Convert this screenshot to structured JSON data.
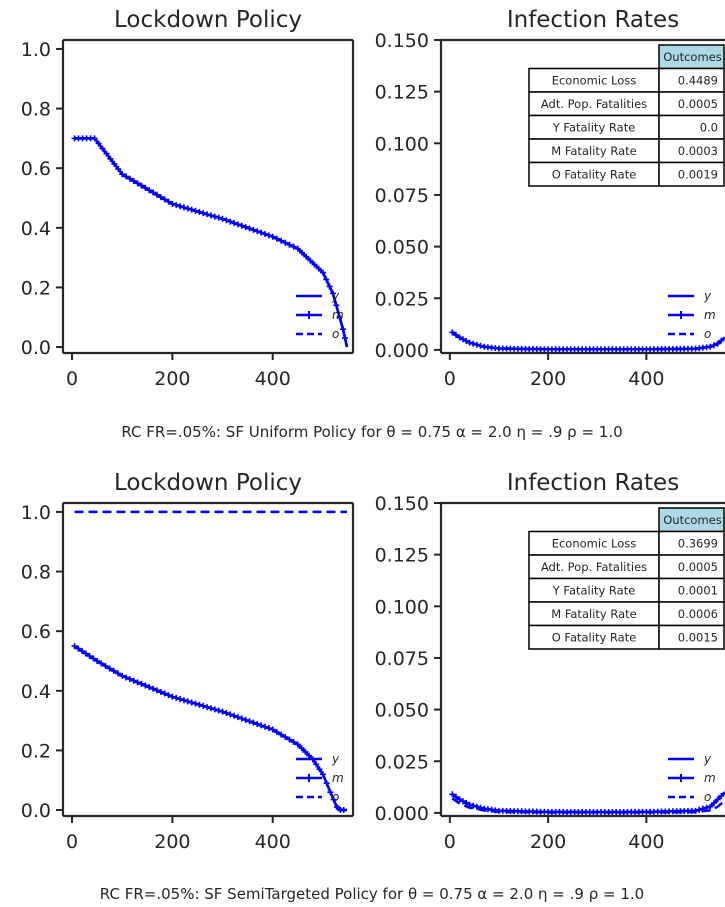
{
  "figure": {
    "panel_titles": [
      "Lockdown Policy",
      "Infection Rates"
    ],
    "captions": [
      "RC FR=.05%: SF Uniform Policy for   θ = 0.75  α = 2.0  η = .9 ρ = 1.0",
      "RC FR=.05%: SF SemiTargeted Policy for   θ = 0.75  α = 2.0  η = .9 ρ = 1.0"
    ],
    "legend": [
      "y",
      "m",
      "o"
    ],
    "line_color": "#0000ff",
    "outcomes_header_color": "#add8e6"
  },
  "chart_data": [
    {
      "type": "line",
      "title": "Lockdown Policy",
      "xlim": [
        -18,
        560
      ],
      "ylim": [
        -0.02,
        1.03
      ],
      "xticks": [
        "0",
        "200",
        "400"
      ],
      "yticks": [
        "0.0",
        "0.2",
        "0.4",
        "0.6",
        "0.8",
        "1.0"
      ],
      "series": [
        {
          "name": "y",
          "style": "solid",
          "x": [
            5,
            45,
            100,
            200,
            300,
            400,
            450,
            500,
            520,
            540,
            548
          ],
          "y": [
            0.7,
            0.7,
            0.58,
            0.48,
            0.43,
            0.37,
            0.33,
            0.25,
            0.18,
            0.06,
            0.0
          ]
        },
        {
          "name": "m",
          "style": "plus-marker",
          "x": [
            5,
            45,
            100,
            200,
            300,
            400,
            450,
            500,
            520,
            540,
            548
          ],
          "y": [
            0.7,
            0.7,
            0.58,
            0.48,
            0.43,
            0.37,
            0.33,
            0.25,
            0.18,
            0.06,
            0.0
          ]
        },
        {
          "name": "o",
          "style": "dashed",
          "x": [
            5,
            45,
            100,
            200,
            300,
            400,
            450,
            500,
            520,
            540,
            548
          ],
          "y": [
            0.7,
            0.7,
            0.58,
            0.48,
            0.43,
            0.37,
            0.33,
            0.25,
            0.18,
            0.06,
            0.0
          ]
        }
      ]
    },
    {
      "type": "line",
      "title": "Infection Rates",
      "xlim": [
        -18,
        560
      ],
      "ylim": [
        -0.0015,
        0.15
      ],
      "xticks": [
        "0",
        "200",
        "400"
      ],
      "yticks": [
        "0.000",
        "0.025",
        "0.050",
        "0.075",
        "0.100",
        "0.125",
        "0.150"
      ],
      "table": {
        "header": "Outcomes",
        "rows": [
          [
            "Economic Loss",
            "0.4489"
          ],
          [
            "Adt. Pop. Fatalities",
            "0.0005"
          ],
          [
            "Y Fatality Rate",
            "0.0"
          ],
          [
            "M Fatality Rate",
            "0.0003"
          ],
          [
            "O Fatality Rate",
            "0.0019"
          ]
        ]
      },
      "series": [
        {
          "name": "y",
          "style": "solid",
          "x": [
            5,
            20,
            40,
            70,
            100,
            200,
            300,
            400,
            500,
            530,
            545,
            560
          ],
          "y": [
            0.0085,
            0.006,
            0.0035,
            0.0015,
            0.0007,
            0.0003,
            0.0003,
            0.0003,
            0.0006,
            0.0015,
            0.003,
            0.006
          ]
        },
        {
          "name": "m",
          "style": "plus-marker",
          "x": [
            5,
            20,
            40,
            70,
            100,
            200,
            300,
            400,
            500,
            530,
            545,
            560
          ],
          "y": [
            0.0085,
            0.006,
            0.0035,
            0.0015,
            0.0007,
            0.0003,
            0.0003,
            0.0003,
            0.0006,
            0.0015,
            0.003,
            0.006
          ]
        },
        {
          "name": "o",
          "style": "dashed",
          "x": [
            5,
            20,
            40,
            70,
            100,
            200,
            300,
            400,
            500,
            530,
            545,
            560
          ],
          "y": [
            0.0085,
            0.006,
            0.0035,
            0.0015,
            0.0007,
            0.0003,
            0.0003,
            0.0003,
            0.0006,
            0.0015,
            0.003,
            0.006
          ]
        }
      ]
    },
    {
      "type": "line",
      "title": "Lockdown Policy",
      "xlim": [
        -18,
        560
      ],
      "ylim": [
        -0.02,
        1.03
      ],
      "xticks": [
        "0",
        "200",
        "400"
      ],
      "yticks": [
        "0.0",
        "0.2",
        "0.4",
        "0.6",
        "0.8",
        "1.0"
      ],
      "series": [
        {
          "name": "y",
          "style": "solid",
          "x": [
            5,
            50,
            100,
            200,
            300,
            400,
            450,
            480,
            500,
            515,
            528,
            535,
            548
          ],
          "y": [
            0.55,
            0.5,
            0.45,
            0.38,
            0.33,
            0.27,
            0.22,
            0.17,
            0.12,
            0.06,
            0.01,
            0.0,
            0.0
          ]
        },
        {
          "name": "m",
          "style": "plus-marker",
          "x": [
            5,
            50,
            100,
            200,
            300,
            400,
            450,
            480,
            500,
            515,
            528,
            535,
            548
          ],
          "y": [
            0.55,
            0.5,
            0.45,
            0.38,
            0.33,
            0.27,
            0.22,
            0.17,
            0.12,
            0.06,
            0.01,
            0.0,
            0.0
          ]
        },
        {
          "name": "o",
          "style": "dashed",
          "x": [
            5,
            548
          ],
          "y": [
            1.0,
            1.0
          ]
        }
      ]
    },
    {
      "type": "line",
      "title": "Infection Rates",
      "xlim": [
        -18,
        560
      ],
      "ylim": [
        -0.0015,
        0.15
      ],
      "xticks": [
        "0",
        "200",
        "400"
      ],
      "yticks": [
        "0.000",
        "0.025",
        "0.050",
        "0.075",
        "0.100",
        "0.125",
        "0.150"
      ],
      "table": {
        "header": "Outcomes",
        "rows": [
          [
            "Economic Loss",
            "0.3699"
          ],
          [
            "Adt. Pop. Fatalities",
            "0.0005"
          ],
          [
            "Y Fatality Rate",
            "0.0001"
          ],
          [
            "M Fatality Rate",
            "0.0006"
          ],
          [
            "O Fatality Rate",
            "0.0015"
          ]
        ]
      },
      "series": [
        {
          "name": "y",
          "style": "solid",
          "x": [
            5,
            20,
            40,
            70,
            100,
            200,
            300,
            400,
            500,
            530,
            545,
            560
          ],
          "y": [
            0.009,
            0.0065,
            0.004,
            0.002,
            0.001,
            0.0005,
            0.0004,
            0.0005,
            0.001,
            0.003,
            0.0065,
            0.01
          ]
        },
        {
          "name": "m",
          "style": "plus-marker",
          "x": [
            5,
            20,
            40,
            70,
            100,
            200,
            300,
            400,
            500,
            530,
            545,
            560
          ],
          "y": [
            0.009,
            0.0065,
            0.004,
            0.002,
            0.001,
            0.0005,
            0.0004,
            0.0005,
            0.001,
            0.003,
            0.0065,
            0.01
          ]
        },
        {
          "name": "o",
          "style": "dashed",
          "x": [
            5,
            20,
            40,
            70,
            100,
            200,
            300,
            400,
            500,
            530,
            545,
            560
          ],
          "y": [
            0.007,
            0.0045,
            0.0025,
            0.0012,
            0.0005,
            0.0002,
            0.0002,
            0.0002,
            0.0004,
            0.0012,
            0.003,
            0.006
          ]
        }
      ]
    }
  ]
}
